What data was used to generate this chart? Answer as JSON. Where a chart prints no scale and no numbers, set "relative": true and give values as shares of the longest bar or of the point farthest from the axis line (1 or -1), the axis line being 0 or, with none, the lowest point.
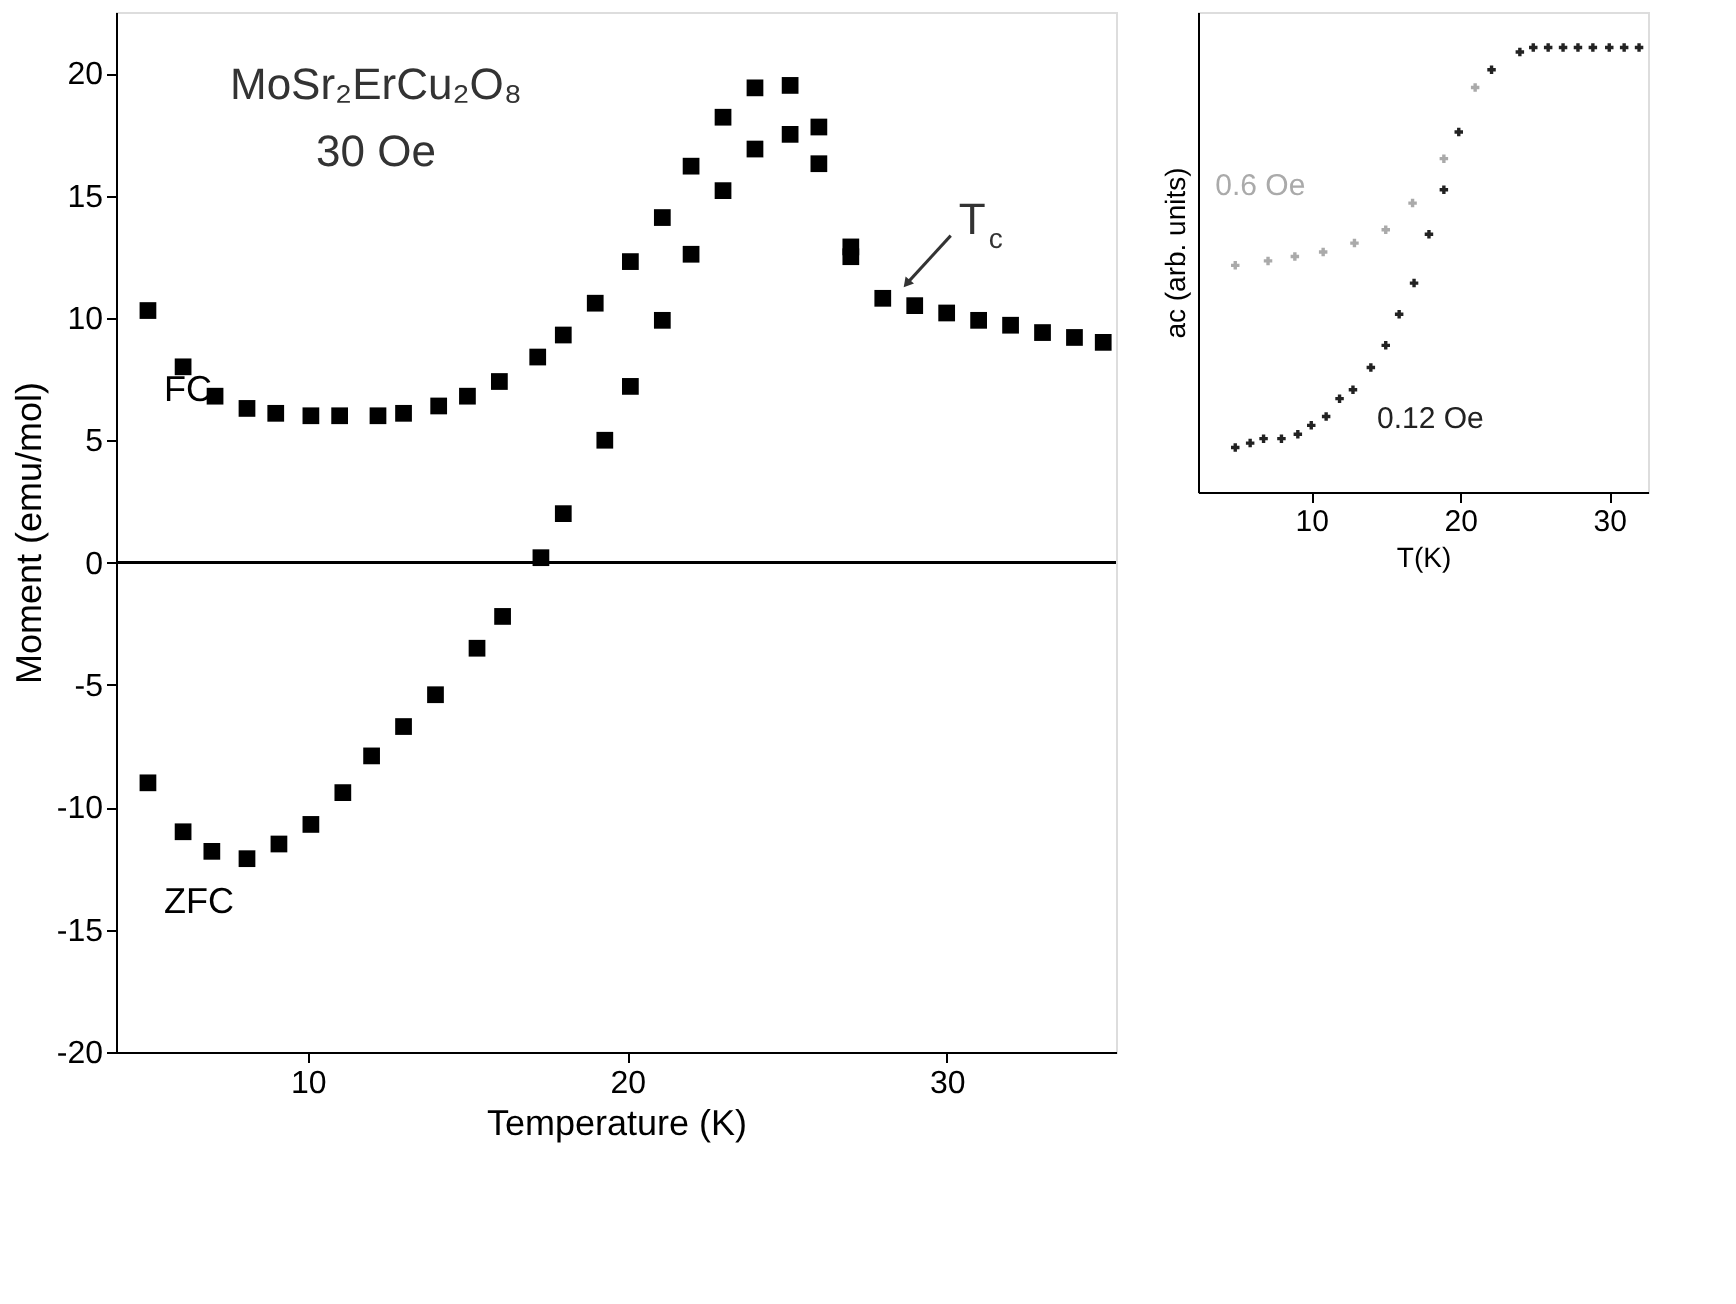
{
  "chart_data": [
    {
      "type": "scatter",
      "xlabel": "Temperature (K)",
      "ylabel": "Moment (emu/mol)",
      "xlim": [
        4,
        35.3
      ],
      "ylim": [
        -20,
        22.5
      ],
      "xticks": [
        10,
        20,
        30
      ],
      "yticks": [
        -20,
        -15,
        -10,
        -5,
        0,
        5,
        10,
        15,
        20
      ],
      "grid": false,
      "marker": "square",
      "series": [
        {
          "name": "FC",
          "color": "#000000",
          "x": [
            5.0,
            6.1,
            7.1,
            8.1,
            9.0,
            10.1,
            11.0,
            12.2,
            13.0,
            14.1,
            15.0,
            16.0,
            17.2,
            18.0,
            19.0,
            20.1,
            21.1,
            22.0,
            23.0,
            24.0,
            25.1,
            26.0,
            27.0,
            28.0,
            29.0,
            30.0,
            31.0,
            32.0,
            33.0,
            34.0,
            34.9
          ],
          "values": [
            10.3,
            8.0,
            6.8,
            6.3,
            6.1,
            6.0,
            6.0,
            6.0,
            6.1,
            6.4,
            6.8,
            7.4,
            8.4,
            9.3,
            10.6,
            12.3,
            14.1,
            16.2,
            18.2,
            19.4,
            19.5,
            17.8,
            12.9,
            10.8,
            10.5,
            10.2,
            9.9,
            9.7,
            9.4,
            9.2,
            9.0
          ]
        },
        {
          "name": "ZFC",
          "color": "#000000",
          "x": [
            5.0,
            6.1,
            7.0,
            8.1,
            9.1,
            10.1,
            11.1,
            12.0,
            13.0,
            14.0,
            15.3,
            16.1,
            17.3,
            18.0,
            19.3,
            20.1,
            21.1,
            22.0,
            23.0,
            24.0,
            25.1,
            26.0,
            27.0
          ],
          "values": [
            -9.0,
            -11.0,
            -11.8,
            -12.1,
            -11.5,
            -10.7,
            -9.4,
            -7.9,
            -6.7,
            -5.4,
            -3.5,
            -2.2,
            0.2,
            2.0,
            5.0,
            7.2,
            9.9,
            12.6,
            15.2,
            16.9,
            17.5,
            16.3,
            12.5
          ]
        }
      ],
      "ref_lines": [
        {
          "axis": "y",
          "value": 0,
          "color": "#000000"
        }
      ],
      "annotations": [
        "MoSr₂ErCu₂O₈",
        "30 Oe",
        {
          "text": "T$_{c}$",
          "x": 28.75,
          "y": 11.4
        }
      ]
    },
    {
      "type": "scatter",
      "relative": true,
      "xlabel": "T(K)",
      "ylabel": "ac (arb. units)",
      "xlim": [
        2.4,
        32.6
      ],
      "xticks": [
        10,
        20,
        30
      ],
      "grid": false,
      "marker": "cross",
      "series": [
        {
          "name": "0.6 Oe",
          "color": "#aaaaaa",
          "x": [
            4.9,
            7.1,
            8.9,
            10.8,
            12.9,
            15.0,
            16.8,
            18.9,
            21.0
          ],
          "values": [
            0.51,
            0.52,
            0.53,
            0.54,
            0.56,
            0.59,
            0.65,
            0.75,
            0.91
          ]
        },
        {
          "name": "0.12 Oe",
          "color": "#222222",
          "x": [
            4.9,
            5.9,
            6.8,
            8.0,
            9.1,
            10.0,
            11.0,
            11.9,
            12.8,
            14.0,
            15.0,
            15.9,
            16.9,
            17.9,
            18.9,
            19.9,
            22.1,
            24.0,
            24.9,
            25.9,
            26.9,
            27.9,
            28.9,
            30.0,
            31.0,
            32.0
          ],
          "values": [
            0.1,
            0.11,
            0.12,
            0.12,
            0.13,
            0.15,
            0.17,
            0.21,
            0.23,
            0.28,
            0.33,
            0.4,
            0.47,
            0.58,
            0.68,
            0.81,
            0.95,
            0.99,
            1.0,
            1.0,
            1.0,
            1.0,
            1.0,
            1.0,
            1.0,
            1.0
          ]
        }
      ]
    }
  ]
}
